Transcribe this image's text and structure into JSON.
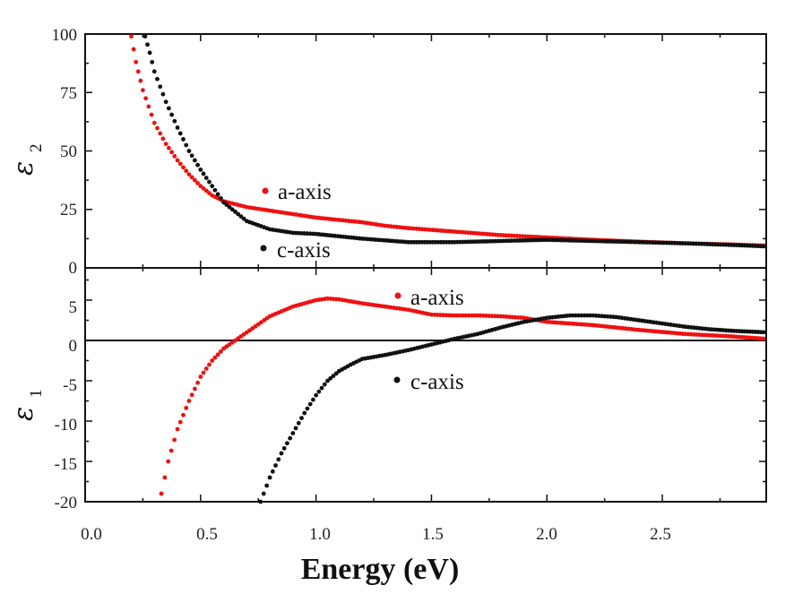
{
  "chart_data": [
    {
      "type": "scatter",
      "panel": "top",
      "ylabel": "ε",
      "ylabel_subscript": "2",
      "ylim": [
        0,
        100
      ],
      "xlim": [
        0,
        2.95
      ],
      "yticks": [
        "0",
        "25",
        "50",
        "75",
        "100"
      ],
      "series": [
        {
          "name": "a-axis",
          "color": "#ee1111",
          "points": [
            [
              0.2,
              99
            ],
            [
              0.22,
              88
            ],
            [
              0.25,
              76
            ],
            [
              0.3,
              62
            ],
            [
              0.35,
              53
            ],
            [
              0.4,
              46
            ],
            [
              0.45,
              40
            ],
            [
              0.5,
              35
            ],
            [
              0.55,
              31
            ],
            [
              0.6,
              28.5
            ],
            [
              0.7,
              26
            ],
            [
              0.8,
              24.5
            ],
            [
              0.9,
              23
            ],
            [
              1.0,
              21.5
            ],
            [
              1.2,
              19.5
            ],
            [
              1.3,
              18
            ],
            [
              1.4,
              17
            ],
            [
              1.6,
              15.5
            ],
            [
              1.8,
              14
            ],
            [
              2.0,
              13
            ],
            [
              2.2,
              12
            ],
            [
              2.4,
              11.2
            ],
            [
              2.6,
              10.5
            ],
            [
              2.8,
              10
            ],
            [
              2.95,
              9.5
            ]
          ]
        },
        {
          "name": "c-axis",
          "color": "#111111",
          "points": [
            [
              0.26,
              99
            ],
            [
              0.28,
              92
            ],
            [
              0.3,
              84
            ],
            [
              0.35,
              71
            ],
            [
              0.4,
              60
            ],
            [
              0.45,
              50
            ],
            [
              0.5,
              42
            ],
            [
              0.55,
              35
            ],
            [
              0.6,
              28
            ],
            [
              0.65,
              24
            ],
            [
              0.7,
              20
            ],
            [
              0.8,
              16.5
            ],
            [
              0.9,
              15
            ],
            [
              1.0,
              14.5
            ],
            [
              1.2,
              12.5
            ],
            [
              1.4,
              11
            ],
            [
              1.6,
              11
            ],
            [
              1.8,
              11.5
            ],
            [
              2.0,
              12
            ],
            [
              2.2,
              11.5
            ],
            [
              2.4,
              11
            ],
            [
              2.6,
              10.5
            ],
            [
              2.8,
              9.8
            ],
            [
              2.95,
              9.2
            ]
          ]
        }
      ],
      "legend": [
        {
          "label": "a-axis",
          "color": "#ee1111"
        },
        {
          "label": "c-axis",
          "color": "#111111"
        }
      ]
    },
    {
      "type": "scatter",
      "panel": "bottom",
      "ylabel": "ε",
      "ylabel_subscript": "1",
      "ylim": [
        -20,
        9
      ],
      "xlim": [
        0,
        2.95
      ],
      "yticks": [
        "-20",
        "-15",
        "-10",
        "-5",
        "0",
        "5"
      ],
      "xlabel": "Energy (eV)",
      "xticks": [
        "0.0",
        "0.5",
        "1.0",
        "1.5",
        "2.0",
        "2.5"
      ],
      "series": [
        {
          "name": "a-axis",
          "color": "#ee1111",
          "points": [
            [
              0.33,
              -19
            ],
            [
              0.36,
              -15
            ],
            [
              0.4,
              -11
            ],
            [
              0.45,
              -7.5
            ],
            [
              0.5,
              -4.5
            ],
            [
              0.55,
              -2.5
            ],
            [
              0.6,
              -1
            ],
            [
              0.65,
              0
            ],
            [
              0.7,
              1
            ],
            [
              0.75,
              2
            ],
            [
              0.8,
              3
            ],
            [
              0.9,
              4.2
            ],
            [
              1.0,
              5
            ],
            [
              1.05,
              5.2
            ],
            [
              1.1,
              5.1
            ],
            [
              1.2,
              4.6
            ],
            [
              1.3,
              4.2
            ],
            [
              1.4,
              3.8
            ],
            [
              1.5,
              3.2
            ],
            [
              1.6,
              3.1
            ],
            [
              1.7,
              3.1
            ],
            [
              1.8,
              3
            ],
            [
              1.9,
              2.8
            ],
            [
              2.0,
              2.3
            ],
            [
              2.2,
              1.9
            ],
            [
              2.4,
              1.3
            ],
            [
              2.6,
              0.8
            ],
            [
              2.8,
              0.5
            ],
            [
              2.95,
              0.2
            ]
          ]
        },
        {
          "name": "c-axis",
          "color": "#111111",
          "points": [
            [
              0.76,
              -20
            ],
            [
              0.8,
              -17
            ],
            [
              0.85,
              -14
            ],
            [
              0.9,
              -11.5
            ],
            [
              0.95,
              -9
            ],
            [
              1.0,
              -6.8
            ],
            [
              1.05,
              -5
            ],
            [
              1.1,
              -3.8
            ],
            [
              1.15,
              -3
            ],
            [
              1.2,
              -2.3
            ],
            [
              1.3,
              -1.8
            ],
            [
              1.4,
              -1.2
            ],
            [
              1.5,
              -0.5
            ],
            [
              1.6,
              0.2
            ],
            [
              1.7,
              0.8
            ],
            [
              1.8,
              1.6
            ],
            [
              1.9,
              2.3
            ],
            [
              2.0,
              2.8
            ],
            [
              2.1,
              3.1
            ],
            [
              2.2,
              3.1
            ],
            [
              2.3,
              2.9
            ],
            [
              2.4,
              2.5
            ],
            [
              2.5,
              2.1
            ],
            [
              2.6,
              1.7
            ],
            [
              2.7,
              1.4
            ],
            [
              2.8,
              1.2
            ],
            [
              2.95,
              1.0
            ]
          ]
        }
      ],
      "legend": [
        {
          "label": "a-axis",
          "color": "#ee1111"
        },
        {
          "label": "c-axis",
          "color": "#111111"
        }
      ]
    }
  ]
}
